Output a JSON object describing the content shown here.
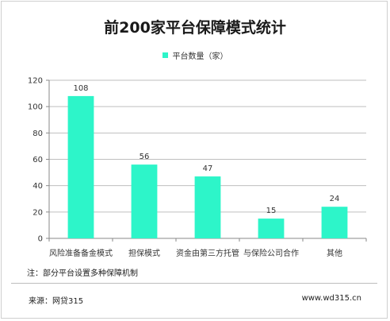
{
  "title": "前200家平台保障模式统计",
  "note": "注：部分平台设置多种保障机制",
  "source": "来源：网贷315",
  "site": "www.wd315.cn",
  "colors": {
    "bar": "#2DF5C9",
    "axis": "#8a8a8a",
    "grid": "#bfbfbf"
  },
  "chart_data": {
    "type": "bar",
    "categories": [
      "风险准备备金模式",
      "担保模式",
      "资金由第三方托管",
      "与保险公司合作",
      "其他"
    ],
    "series": [
      {
        "name": "平台数量（家）",
        "values": [
          108,
          56,
          47,
          15,
          24
        ]
      }
    ],
    "data_labels": [
      "108",
      "56",
      "47",
      "15",
      "24"
    ],
    "yticks": [
      "0",
      "20",
      "40",
      "60",
      "80",
      "100",
      "120"
    ],
    "ylim": [
      0,
      120
    ],
    "grid": true,
    "legend_position": "top-center"
  }
}
